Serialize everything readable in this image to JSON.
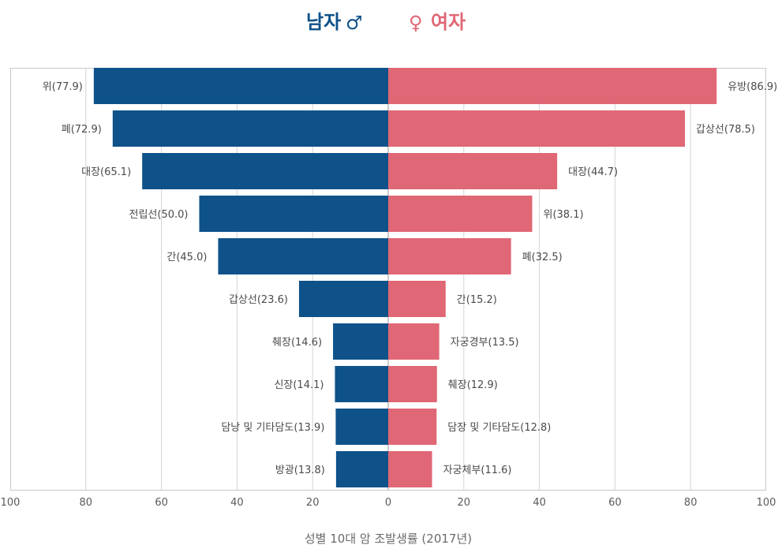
{
  "chart_data": {
    "type": "bar",
    "orientation": "horizontal",
    "layout": "butterfly",
    "xlabel": "성별 10대 암 조발생률 (2017년)",
    "xlim": [
      -100,
      100
    ],
    "x_ticks": [
      "100",
      "80",
      "60",
      "40",
      "20",
      "0",
      "20",
      "40",
      "60",
      "80",
      "100"
    ],
    "grid": true,
    "legend_position": "top-center",
    "series": [
      {
        "name": "남자",
        "symbol": "♂",
        "color": "#0f528a",
        "side": "left",
        "labels": [
          "위(77.9)",
          "폐(72.9)",
          "대장(65.1)",
          "전립선(50.0)",
          "간(45.0)",
          "갑상선(23.6)",
          "췌장(14.6)",
          "신장(14.1)",
          "담낭 및 기타담도(13.9)",
          "방광(13.8)"
        ],
        "categories": [
          "위",
          "폐",
          "대장",
          "전립선",
          "간",
          "갑상선",
          "췌장",
          "신장",
          "담낭 및 기타담도",
          "방광"
        ],
        "values": [
          77.9,
          72.9,
          65.1,
          50.0,
          45.0,
          23.6,
          14.6,
          14.1,
          13.9,
          13.8
        ]
      },
      {
        "name": "여자",
        "symbol": "♀",
        "color": "#e06775",
        "side": "right",
        "labels": [
          "유방(86.9)",
          "갑상선(78.5)",
          "대장(44.7)",
          "위(38.1)",
          "폐(32.5)",
          "간(15.2)",
          "자궁경부(13.5)",
          "췌장(12.9)",
          "담장 및 기타담도(12.8)",
          "자궁체부(11.6)"
        ],
        "categories": [
          "유방",
          "갑상선",
          "대장",
          "위",
          "폐",
          "간",
          "자궁경부",
          "췌장",
          "담장 및 기타담도",
          "자궁체부"
        ],
        "values": [
          86.9,
          78.5,
          44.7,
          38.1,
          32.5,
          15.2,
          13.5,
          12.9,
          12.8,
          11.6
        ]
      }
    ]
  }
}
